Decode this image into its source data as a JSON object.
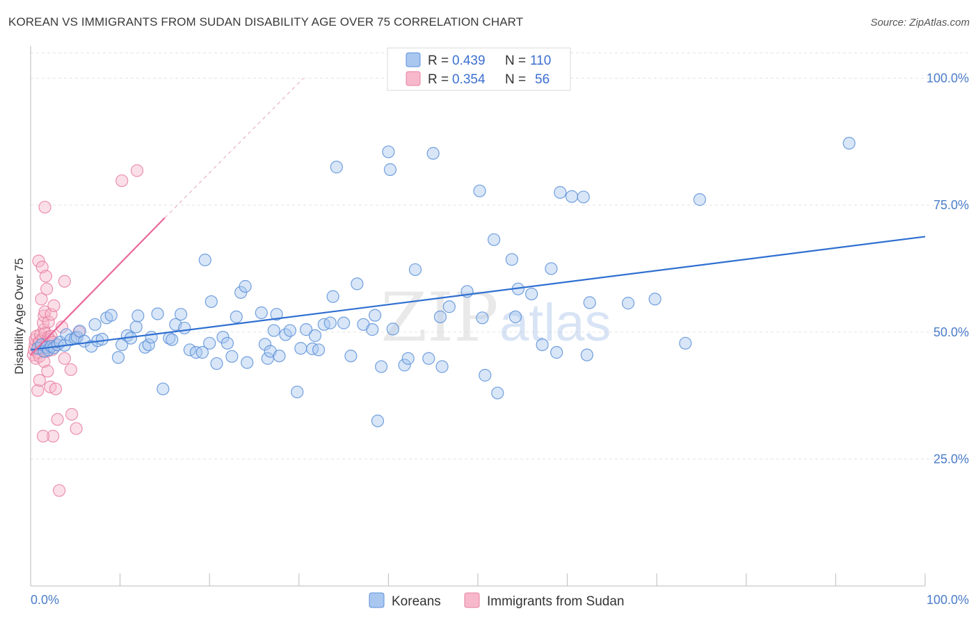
{
  "title": "KOREAN VS IMMIGRANTS FROM SUDAN DISABILITY AGE OVER 75 CORRELATION CHART",
  "source": "Source: ZipAtlas.com",
  "watermark": {
    "zip": "ZIP",
    "atlas": "atlas"
  },
  "colors": {
    "koreans_fill": "#a9c7ef",
    "koreans_stroke": "#5a8fd8",
    "koreans_line": "#2f6fd1",
    "sudan_fill": "#f7b8cb",
    "sudan_stroke": "#e87fa0",
    "sudan_line": "#e8679a",
    "tick_text": "#4a7cc9",
    "grid": "#e3e3e3"
  },
  "legend": {
    "rows": [
      {
        "r_label": "R = ",
        "r_value": "0.439",
        "n_label": "N = ",
        "n_value": "110"
      },
      {
        "r_label": "R = ",
        "r_value": "0.354",
        "n_label": "N = ",
        "n_value": "56"
      }
    ]
  },
  "bottom_legend": [
    "Koreans",
    "Immigrants from Sudan"
  ],
  "chart_data": {
    "type": "scatter",
    "xlabel": "",
    "ylabel": "Disability Age Over 75",
    "xlim": [
      0,
      100
    ],
    "ylim": [
      0,
      105
    ],
    "x_tick_labels": [
      "0.0%",
      "100.0%"
    ],
    "y_ticks": [
      25,
      50,
      75,
      100
    ],
    "y_tick_labels": [
      "25.0%",
      "50.0%",
      "75.0%",
      "100.0%"
    ],
    "grid": true,
    "legend_position": "top-center",
    "series": [
      {
        "name": "Koreans",
        "r": 0.439,
        "n": 110,
        "trend": {
          "x": [
            0,
            100
          ],
          "y": [
            46.5,
            68.8
          ]
        },
        "points": [
          [
            0.8,
            46.8
          ],
          [
            1.2,
            47.5
          ],
          [
            1.5,
            46.2
          ],
          [
            1.8,
            47.0
          ],
          [
            2.0,
            46.5
          ],
          [
            2.3,
            47.2
          ],
          [
            2.6,
            46.9
          ],
          [
            3.0,
            47.5
          ],
          [
            3.3,
            48.0
          ],
          [
            3.8,
            47.4
          ],
          [
            4.0,
            49.5
          ],
          [
            4.5,
            48.5
          ],
          [
            5.0,
            48.8
          ],
          [
            5.2,
            49.0
          ],
          [
            5.5,
            50.2
          ],
          [
            6.0,
            48.2
          ],
          [
            6.8,
            47.2
          ],
          [
            7.2,
            51.5
          ],
          [
            7.5,
            48.3
          ],
          [
            8.0,
            48.6
          ],
          [
            8.5,
            52.8
          ],
          [
            9.0,
            53.3
          ],
          [
            9.8,
            45.0
          ],
          [
            10.2,
            47.5
          ],
          [
            10.8,
            49.3
          ],
          [
            11.2,
            48.8
          ],
          [
            11.8,
            51.0
          ],
          [
            12.0,
            53.2
          ],
          [
            12.8,
            47.0
          ],
          [
            13.2,
            47.5
          ],
          [
            13.5,
            49.0
          ],
          [
            14.2,
            53.6
          ],
          [
            14.8,
            38.8
          ],
          [
            15.5,
            48.8
          ],
          [
            15.8,
            48.5
          ],
          [
            16.2,
            51.5
          ],
          [
            16.8,
            53.5
          ],
          [
            17.2,
            50.8
          ],
          [
            17.8,
            46.5
          ],
          [
            18.5,
            46.0
          ],
          [
            19.2,
            46.0
          ],
          [
            19.5,
            64.2
          ],
          [
            20.0,
            47.8
          ],
          [
            20.2,
            56.0
          ],
          [
            20.8,
            43.8
          ],
          [
            21.5,
            49.0
          ],
          [
            22.0,
            47.8
          ],
          [
            22.5,
            45.2
          ],
          [
            23.0,
            53.0
          ],
          [
            23.5,
            57.8
          ],
          [
            24.0,
            59.0
          ],
          [
            24.2,
            44.0
          ],
          [
            25.8,
            53.8
          ],
          [
            26.2,
            47.6
          ],
          [
            26.5,
            44.8
          ],
          [
            26.8,
            46.2
          ],
          [
            27.2,
            50.3
          ],
          [
            27.5,
            53.5
          ],
          [
            27.8,
            45.3
          ],
          [
            28.5,
            49.5
          ],
          [
            29.0,
            50.3
          ],
          [
            29.8,
            38.2
          ],
          [
            30.2,
            46.8
          ],
          [
            30.8,
            50.5
          ],
          [
            31.5,
            46.7
          ],
          [
            31.8,
            49.3
          ],
          [
            32.2,
            46.5
          ],
          [
            32.8,
            51.5
          ],
          [
            33.5,
            51.8
          ],
          [
            33.8,
            57.0
          ],
          [
            34.2,
            82.5
          ],
          [
            35.0,
            51.8
          ],
          [
            35.8,
            45.3
          ],
          [
            36.5,
            59.5
          ],
          [
            37.2,
            51.5
          ],
          [
            38.2,
            50.5
          ],
          [
            38.5,
            53.3
          ],
          [
            38.8,
            32.5
          ],
          [
            39.2,
            43.2
          ],
          [
            40.0,
            85.5
          ],
          [
            40.2,
            82.0
          ],
          [
            40.5,
            50.6
          ],
          [
            41.8,
            43.5
          ],
          [
            42.2,
            44.8
          ],
          [
            43.0,
            62.3
          ],
          [
            44.5,
            44.8
          ],
          [
            45.0,
            85.2
          ],
          [
            45.8,
            53.0
          ],
          [
            46.0,
            43.2
          ],
          [
            46.8,
            55.0
          ],
          [
            48.8,
            58.0
          ],
          [
            50.2,
            77.8
          ],
          [
            50.5,
            52.8
          ],
          [
            50.8,
            41.5
          ],
          [
            51.8,
            68.2
          ],
          [
            52.2,
            38.0
          ],
          [
            53.8,
            64.3
          ],
          [
            54.2,
            53.0
          ],
          [
            54.5,
            58.5
          ],
          [
            56.0,
            57.5
          ],
          [
            57.2,
            47.5
          ],
          [
            58.2,
            62.5
          ],
          [
            58.8,
            46.0
          ],
          [
            59.2,
            77.5
          ],
          [
            60.5,
            76.7
          ],
          [
            61.8,
            76.6
          ],
          [
            62.2,
            45.5
          ],
          [
            62.5,
            55.8
          ],
          [
            66.8,
            55.7
          ],
          [
            69.8,
            56.5
          ],
          [
            73.2,
            47.8
          ],
          [
            74.8,
            76.1
          ],
          [
            91.5,
            87.2
          ]
        ]
      },
      {
        "name": "Immigrants from Sudan",
        "r": 0.354,
        "n": 56,
        "trend": {
          "x": [
            0,
            15
          ],
          "y": [
            45.5,
            72.5
          ]
        },
        "trend_dashed": {
          "x": [
            15,
            30.5
          ],
          "y": [
            72.5,
            100.0
          ]
        },
        "points": [
          [
            0.3,
            45.5
          ],
          [
            0.4,
            46.5
          ],
          [
            0.5,
            47.5
          ],
          [
            0.5,
            48.5
          ],
          [
            0.6,
            44.8
          ],
          [
            0.7,
            49.2
          ],
          [
            0.8,
            46.0
          ],
          [
            0.9,
            47.8
          ],
          [
            1.0,
            48.2
          ],
          [
            1.0,
            45.2
          ],
          [
            1.1,
            49.5
          ],
          [
            1.2,
            46.8
          ],
          [
            1.3,
            47.0
          ],
          [
            1.4,
            48.8
          ],
          [
            1.5,
            44.2
          ],
          [
            1.5,
            50.5
          ],
          [
            1.6,
            49.8
          ],
          [
            1.7,
            47.5
          ],
          [
            1.8,
            46.2
          ],
          [
            1.9,
            48.0
          ],
          [
            2.0,
            49.0
          ],
          [
            2.1,
            48.5
          ],
          [
            2.2,
            47.2
          ],
          [
            2.3,
            49.2
          ],
          [
            2.4,
            46.5
          ],
          [
            2.5,
            48.0
          ],
          [
            0.8,
            38.5
          ],
          [
            0.9,
            64.0
          ],
          [
            1.2,
            56.5
          ],
          [
            1.3,
            62.8
          ],
          [
            1.4,
            51.8
          ],
          [
            1.5,
            53.2
          ],
          [
            1.6,
            54.0
          ],
          [
            1.7,
            61.0
          ],
          [
            1.8,
            58.5
          ],
          [
            1.9,
            42.3
          ],
          [
            2.0,
            52.0
          ],
          [
            2.2,
            39.2
          ],
          [
            2.3,
            53.5
          ],
          [
            2.5,
            29.5
          ],
          [
            2.6,
            55.2
          ],
          [
            2.8,
            38.8
          ],
          [
            3.0,
            32.8
          ],
          [
            3.2,
            18.8
          ],
          [
            3.5,
            51.0
          ],
          [
            3.8,
            44.8
          ],
          [
            3.8,
            60.0
          ],
          [
            4.5,
            42.6
          ],
          [
            4.6,
            33.8
          ],
          [
            5.1,
            31.0
          ],
          [
            5.4,
            50.0
          ],
          [
            1.4,
            29.5
          ],
          [
            1.6,
            74.6
          ],
          [
            1.0,
            40.5
          ],
          [
            10.2,
            79.8
          ],
          [
            11.9,
            81.8
          ]
        ]
      }
    ]
  }
}
